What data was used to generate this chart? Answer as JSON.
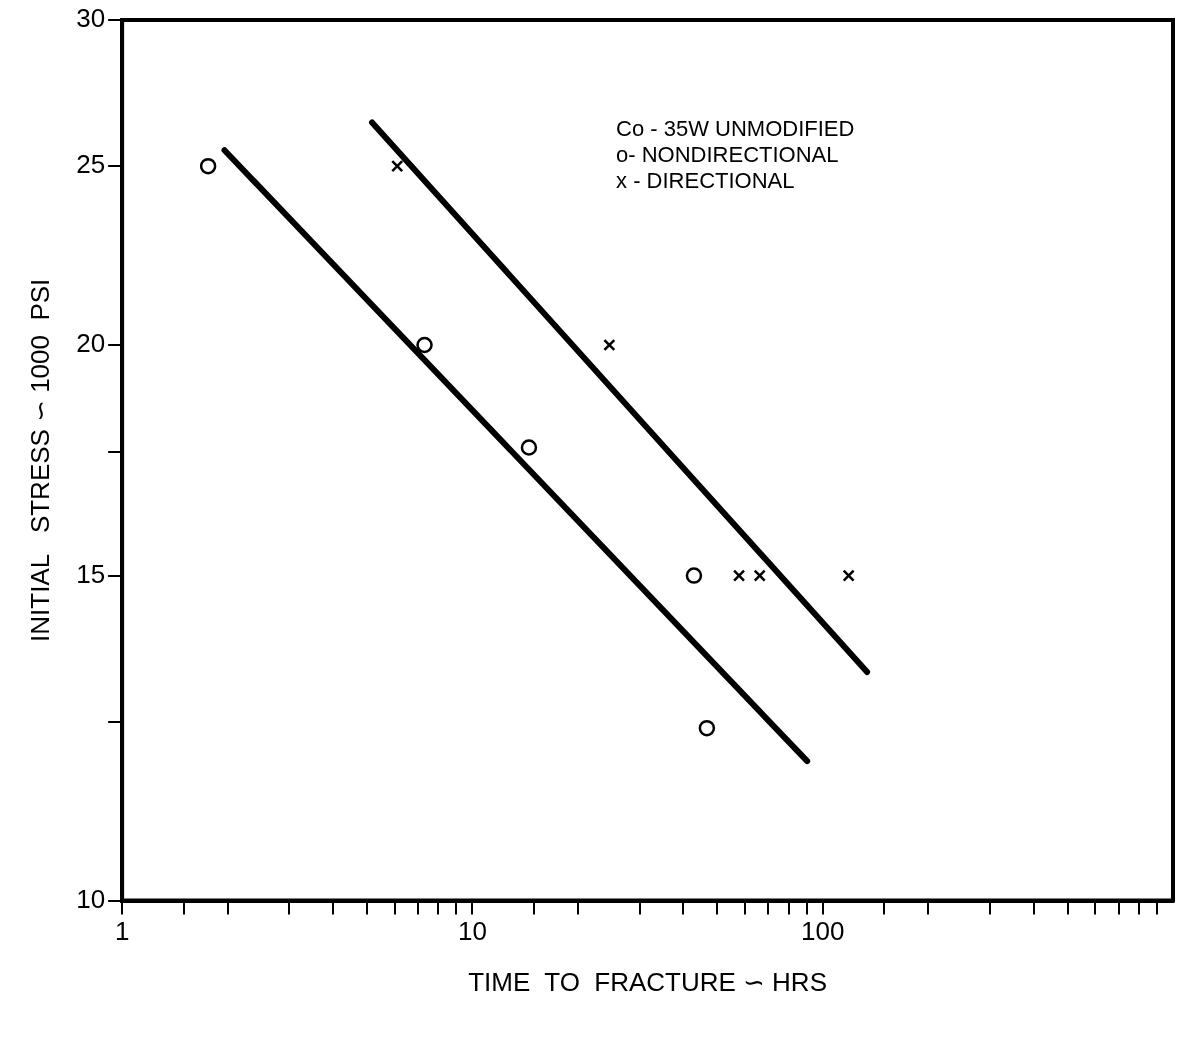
{
  "chart_data": {
    "type": "scatter",
    "xlabel": "TIME  TO  FRACTURE ∽ HRS",
    "ylabel": "INITIAL   STRESS ∽ 1000  PSI",
    "annotations": [
      "Co - 35W UNMODIFIED",
      "o- NONDIRECTIONAL",
      "x - DIRECTIONAL"
    ],
    "log": "xy",
    "grid": false,
    "xlim": [
      1,
      1000
    ],
    "xticks": [
      1,
      {
        "value": 1.5,
        "label": null
      },
      {
        "value": 2,
        "label": null
      },
      {
        "value": 3,
        "label": null
      },
      {
        "value": 4,
        "label": null
      },
      {
        "value": 5,
        "label": null
      },
      {
        "value": 6,
        "label": null
      },
      {
        "value": 7,
        "label": null
      },
      {
        "value": 8,
        "label": null
      },
      {
        "value": 9,
        "label": null
      },
      10,
      {
        "value": 15,
        "label": null
      },
      {
        "value": 20,
        "label": null
      },
      {
        "value": 30,
        "label": null
      },
      {
        "value": 40,
        "label": null
      },
      {
        "value": 50,
        "label": null
      },
      {
        "value": 60,
        "label": null
      },
      {
        "value": 70,
        "label": null
      },
      {
        "value": 80,
        "label": null
      },
      {
        "value": 90,
        "label": null
      },
      100,
      {
        "value": 150,
        "label": null
      },
      {
        "value": 200,
        "label": null
      },
      {
        "value": 300,
        "label": null
      },
      {
        "value": 400,
        "label": null
      },
      {
        "value": 500,
        "label": null
      },
      {
        "value": 600,
        "label": null
      },
      {
        "value": 700,
        "label": null
      },
      {
        "value": 800,
        "label": null
      },
      {
        "value": 900,
        "label": null
      }
    ],
    "ylim": [
      10,
      30
    ],
    "yticks": [
      10,
      {
        "value": 12.5,
        "label": null
      },
      15,
      {
        "value": 17.5,
        "label": null
      },
      20,
      25,
      30
    ],
    "series": [
      {
        "marker": "circle",
        "color": "#000000",
        "x": [
          1.76,
          7.3,
          14.5,
          42.9,
          46.7
        ],
        "values": [
          25,
          20,
          17.6,
          15,
          12.4
        ]
      },
      {
        "marker": "cross",
        "color": "#000000",
        "x": [
          6.1,
          24.6,
          57.7,
          66.1,
          118.6
        ],
        "values": [
          25,
          20,
          15,
          15,
          15
        ]
      },
      {
        "type": "line",
        "marker": "none",
        "line_style": "solid",
        "color": "#000000",
        "x": [
          1.96,
          90.3
        ],
        "values": [
          25.5,
          11.9
        ]
      },
      {
        "type": "line",
        "marker": "none",
        "line_style": "solid",
        "color": "#000000",
        "x": [
          5.17,
          133.9
        ],
        "values": [
          26.4,
          13.3
        ]
      }
    ]
  }
}
